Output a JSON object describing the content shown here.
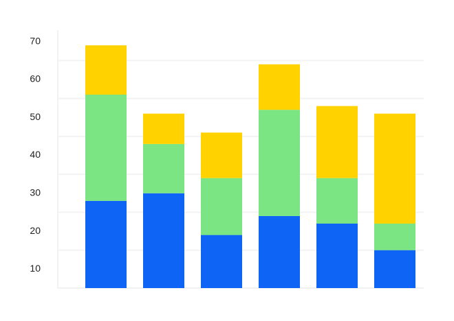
{
  "chart_data": {
    "type": "bar",
    "stacked": true,
    "title": "",
    "xlabel": "",
    "ylabel": "",
    "categories": [
      "",
      "",
      "",
      "",
      "",
      ""
    ],
    "ylim": [
      5,
      73
    ],
    "yticks": [
      10,
      20,
      30,
      40,
      50,
      60,
      70
    ],
    "grid": true,
    "series": [
      {
        "color": "#0d64f5",
        "values": [
          23,
          25,
          14,
          19,
          17,
          10
        ]
      },
      {
        "color": "#7ce583",
        "values": [
          28,
          13,
          15,
          28,
          12,
          7
        ]
      },
      {
        "color": "#ffd200",
        "values": [
          13,
          8,
          12,
          12,
          19,
          29
        ]
      }
    ]
  }
}
